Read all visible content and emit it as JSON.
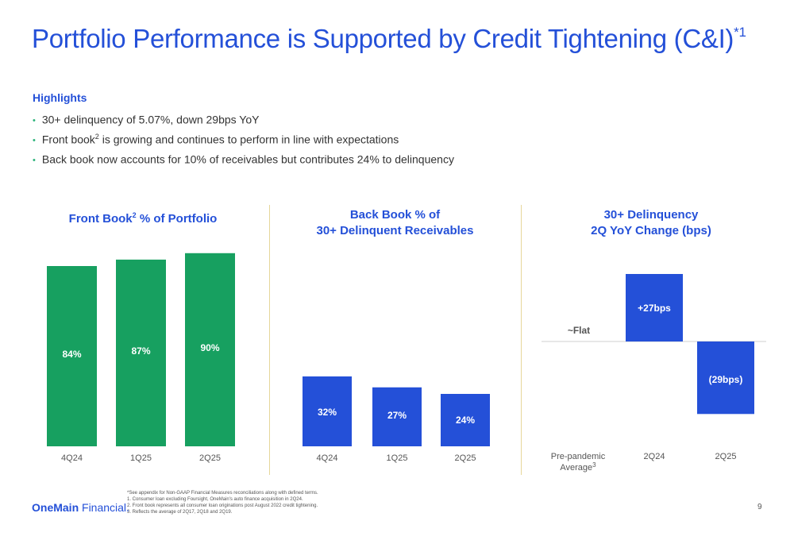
{
  "page": {
    "title": "Portfolio Performance is Supported by Credit Tightening (C&I)",
    "title_sup": "*1",
    "highlights_heading": "Highlights",
    "bullets": [
      {
        "pre": "30+ delinquency of 5.07%, down 29bps YoY",
        "sup": "",
        "post": ""
      },
      {
        "pre": "Front book",
        "sup": "2",
        "post": " is growing and continues to perform in line with expectations"
      },
      {
        "pre": "Back book now accounts for 10% of receivables but contributes 24% to delinquency",
        "sup": "",
        "post": ""
      }
    ],
    "footnotes": [
      "*See appendix for Non-GAAP Financial Measures reconciliations along with defined terms.",
      "1. Consumer loan excluding Foursight, OneMain's auto finance acquisition in 2Q24.",
      "2. Front book represents all consumer loan originations post August 2022 credit tightening.",
      "3. Reflects the average of 2Q17, 2Q18 and 2Q19."
    ],
    "logo": {
      "part1": "OneMain",
      "part2": " Financial",
      "suffix": "."
    },
    "page_number": "9"
  },
  "colors": {
    "title": "#2450d8",
    "green_bar": "#17a060",
    "blue_bar": "#2450d8",
    "divider": "#e6d79a",
    "bullet_dot": "#2bb37a"
  },
  "chart_data": [
    {
      "type": "bar",
      "title_pre": "Front Book",
      "title_sup": "2",
      "title_post": " % of Portfolio",
      "categories": [
        "4Q24",
        "1Q25",
        "2Q25"
      ],
      "values": [
        84,
        87,
        90
      ],
      "labels": [
        "84%",
        "87%",
        "90%"
      ],
      "color": "#17a060"
    },
    {
      "type": "bar",
      "title_line1": "Back Book % of",
      "title_line2": "30+ Delinquent Receivables",
      "categories": [
        "4Q24",
        "1Q25",
        "2Q25"
      ],
      "values": [
        32,
        27,
        24
      ],
      "labels": [
        "32%",
        "27%",
        "24%"
      ],
      "color": "#2450d8"
    },
    {
      "type": "bar",
      "title_line1": "30+ Delinquency",
      "title_line2": "2Q YoY Change (bps)",
      "categories": [
        {
          "line1": "Pre-pandemic",
          "line2": "Average",
          "sup": "3"
        },
        {
          "line1": "2Q24",
          "line2": "",
          "sup": ""
        },
        {
          "line1": "2Q25",
          "line2": "",
          "sup": ""
        }
      ],
      "values": [
        0,
        27,
        -29
      ],
      "labels": [
        "~Flat",
        "+27bps",
        "(29bps)"
      ],
      "color": "#2450d8"
    }
  ]
}
